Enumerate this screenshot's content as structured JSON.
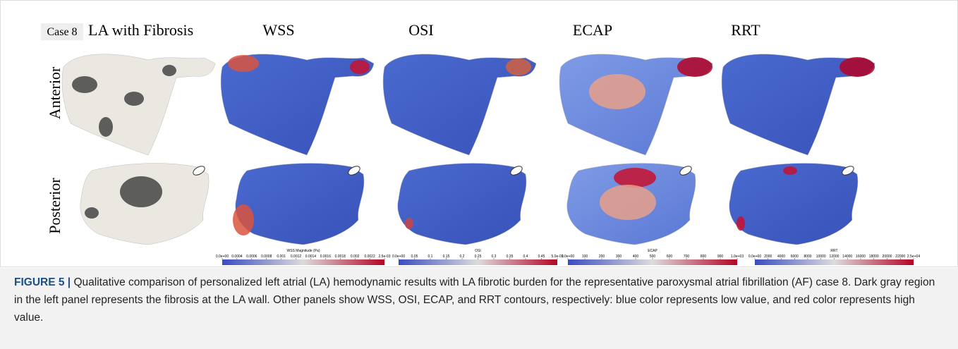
{
  "header": {
    "case": "Case 8",
    "columns": [
      "LA with Fibrosis",
      "WSS",
      "OSI",
      "ECAP",
      "RRT"
    ]
  },
  "rows": [
    "Anterior",
    "Posterior"
  ],
  "colorbars": [
    {
      "title": "WSS Magnitude (Pa)",
      "ticks": [
        "0.0e+00",
        "0.0004",
        "0.0006",
        "0.0008",
        "0.001",
        "0.0012",
        "0.0014",
        "0.0016",
        "0.0018",
        "0.002",
        "0.0022",
        "2.5e-03"
      ]
    },
    {
      "title": "OSI",
      "ticks": [
        "0.0e+00",
        "0.05",
        "0.1",
        "0.15",
        "0.2",
        "0.25",
        "0.3",
        "0.35",
        "0.4",
        "0.45",
        "5.0e-01"
      ]
    },
    {
      "title": "ECAP",
      "ticks": [
        "0.0e+00",
        "100",
        "200",
        "300",
        "400",
        "500",
        "600",
        "700",
        "800",
        "900",
        "1.0e+03"
      ]
    },
    {
      "title": "RRT",
      "ticks": [
        "0.0e+00",
        "2000",
        "4000",
        "6000",
        "8000",
        "10000",
        "12000",
        "14000",
        "16000",
        "18000",
        "20000",
        "22000",
        "2.5e+04"
      ]
    }
  ],
  "caption": {
    "label": "FIGURE 5 |",
    "text": "Qualitative comparison of personalized left atrial (LA) hemodynamic results with LA fibrotic burden for the representative paroxysmal atrial fibrillation (AF) case 8. Dark gray region in the left panel represents the fibrosis at the LA wall. Other panels show WSS, OSI, ECAP, and RRT contours, respectively: blue color represents low value, and red color represents high value."
  }
}
